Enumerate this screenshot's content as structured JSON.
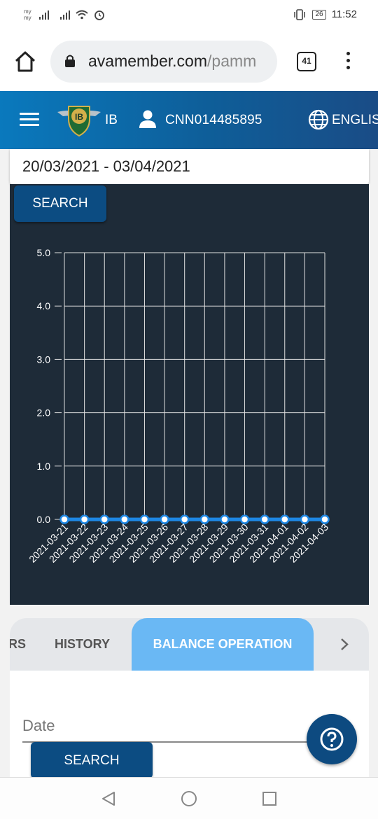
{
  "status_bar": {
    "carrier_top": "my",
    "carrier_bottom": "my",
    "battery": "26",
    "time": "11:52"
  },
  "browser": {
    "url_main": "avamember.com",
    "url_rest": "/pamm",
    "tab_count": "41"
  },
  "header": {
    "ib_label": "IB",
    "logo_text": "IB",
    "account_id": "CNN014485895",
    "language": "ENGLISH"
  },
  "filter": {
    "date_range": "20/03/2021 - 03/04/2021",
    "search_label": "SEARCH"
  },
  "chart_data": {
    "type": "line",
    "categories": [
      "2021-03-21",
      "2021-03-22",
      "2021-03-23",
      "2021-03-24",
      "2021-03-25",
      "2021-03-26",
      "2021-03-27",
      "2021-03-28",
      "2021-03-29",
      "2021-03-30",
      "2021-03-31",
      "2021-04-01",
      "2021-04-02",
      "2021-04-03"
    ],
    "values": [
      0,
      0,
      0,
      0,
      0,
      0,
      0,
      0,
      0,
      0,
      0,
      0,
      0,
      0
    ],
    "y_ticks": [
      "5.0",
      "4.0",
      "3.0",
      "2.0",
      "1.0",
      "0.0"
    ],
    "ylim": [
      0,
      5
    ],
    "grid": true,
    "title": "",
    "xlabel": "",
    "ylabel": "",
    "line_color": "#1e88e5",
    "grid_color": "#e0e0e0"
  },
  "tabs": {
    "partial": "RS",
    "history": "HISTORY",
    "active": "BALANCE OPERATION"
  },
  "form": {
    "date_label": "Date",
    "search_label": "SEARCH"
  }
}
